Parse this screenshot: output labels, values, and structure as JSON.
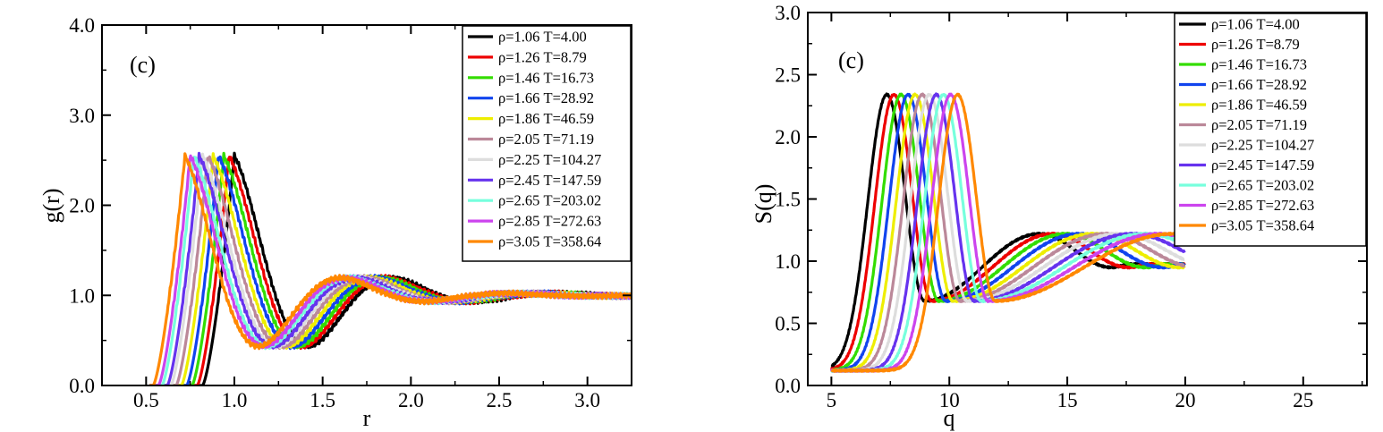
{
  "chart_data": [
    {
      "type": "line",
      "panel_label": "(c)",
      "xlabel": "r",
      "ylabel": "g(r)",
      "xlim": [
        0.25,
        3.25
      ],
      "ylim": [
        0.0,
        4.0
      ],
      "xticks": [
        0.5,
        1.0,
        1.5,
        2.0,
        2.5,
        3.0
      ],
      "xtick_labels": [
        "0.5",
        "1.0",
        "1.5",
        "2.0",
        "2.5",
        "3.0"
      ],
      "yticks": [
        0.0,
        1.0,
        2.0,
        3.0,
        4.0
      ],
      "ytick_labels": [
        "0.0",
        "1.0",
        "2.0",
        "3.0",
        "4.0"
      ],
      "legend_position": "top-right",
      "series": [
        {
          "name": "ρ=1.06 T=4.00",
          "color": "#000000",
          "shift": 0.0
        },
        {
          "name": "ρ=1.26 T=8.79",
          "color": "#ee0000",
          "shift": 0.03
        },
        {
          "name": "ρ=1.46 T=16.73",
          "color": "#33dd00",
          "shift": 0.06
        },
        {
          "name": "ρ=1.66 T=28.92",
          "color": "#1144ee",
          "shift": 0.09
        },
        {
          "name": "ρ=1.86 T=46.59",
          "color": "#eeee00",
          "shift": 0.12
        },
        {
          "name": "ρ=2.05 T=71.19",
          "color": "#bb8899",
          "shift": 0.15
        },
        {
          "name": "ρ=2.25 T=104.27",
          "color": "#dddddd",
          "shift": 0.18
        },
        {
          "name": "ρ=2.45 T=147.59",
          "color": "#6633ee",
          "shift": 0.2
        },
        {
          "name": "ρ=2.65 T=203.02",
          "color": "#77ffdd",
          "shift": 0.23
        },
        {
          "name": "ρ=2.85 T=272.63",
          "color": "#cc44ee",
          "shift": 0.25
        },
        {
          "name": "ρ=3.05 T=358.64",
          "color": "#ff8800",
          "shift": 0.28
        }
      ],
      "peak_height": 2.55,
      "first_min": 0.65,
      "second_peak": 1.24
    },
    {
      "type": "line",
      "panel_label": "(c)",
      "xlabel": "q",
      "ylabel": "S(q)",
      "xlim": [
        4.0,
        27.7
      ],
      "ylim": [
        0.0,
        3.0
      ],
      "xticks": [
        5,
        10,
        15,
        20,
        25
      ],
      "xtick_labels": [
        "5",
        "10",
        "15",
        "20",
        "25"
      ],
      "yticks": [
        0.0,
        0.5,
        1.0,
        1.5,
        2.0,
        2.5,
        3.0
      ],
      "ytick_labels": [
        "0.0",
        "0.5",
        "1.0",
        "1.5",
        "2.0",
        "2.5",
        "3.0"
      ],
      "legend_position": "top-right",
      "series": [
        {
          "name": "ρ=1.06 T=4.00",
          "color": "#000000",
          "peak_q": 7.35
        },
        {
          "name": "ρ=1.26 T=8.79",
          "color": "#ee0000",
          "peak_q": 7.65
        },
        {
          "name": "ρ=1.46 T=16.73",
          "color": "#33dd00",
          "peak_q": 7.95
        },
        {
          "name": "ρ=1.66 T=28.92",
          "color": "#1144ee",
          "peak_q": 8.25
        },
        {
          "name": "ρ=1.86 T=46.59",
          "color": "#eeee00",
          "peak_q": 8.55
        },
        {
          "name": "ρ=2.05 T=71.19",
          "color": "#bb8899",
          "peak_q": 8.85
        },
        {
          "name": "ρ=2.25 T=104.27",
          "color": "#dddddd",
          "peak_q": 9.15
        },
        {
          "name": "ρ=2.45 T=147.59",
          "color": "#6633ee",
          "peak_q": 9.45
        },
        {
          "name": "ρ=2.65 T=203.02",
          "color": "#77ffdd",
          "peak_q": 9.75
        },
        {
          "name": "ρ=2.85 T=272.63",
          "color": "#cc44ee",
          "peak_q": 10.05
        },
        {
          "name": "ρ=3.05 T=358.64",
          "color": "#ff8800",
          "peak_q": 10.35
        }
      ],
      "peak_height": 2.34,
      "first_min": 0.68,
      "second_peak": 1.22,
      "q_max_plotted": 20
    }
  ]
}
